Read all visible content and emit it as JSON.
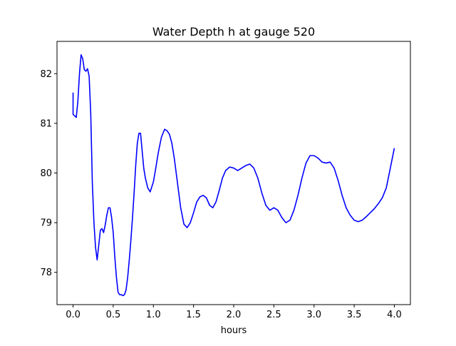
{
  "chart_data": {
    "type": "line",
    "title": "Water Depth h at gauge 520",
    "xlabel": "hours",
    "ylabel": "",
    "xlim": [
      -0.2,
      4.2
    ],
    "ylim": [
      77.35,
      82.65
    ],
    "xticks": [
      0.0,
      0.5,
      1.0,
      1.5,
      2.0,
      2.5,
      3.0,
      3.5,
      4.0
    ],
    "xtick_labels": [
      "0.0",
      "0.5",
      "1.0",
      "1.5",
      "2.0",
      "2.5",
      "3.0",
      "3.5",
      "4.0"
    ],
    "yticks": [
      78,
      79,
      80,
      81,
      82
    ],
    "ytick_labels": [
      "78",
      "79",
      "80",
      "81",
      "82"
    ],
    "grid": false,
    "legend": "none",
    "series": [
      {
        "color": "#0000ff",
        "x": [
          0.0,
          0.0,
          0.02,
          0.04,
          0.06,
          0.08,
          0.1,
          0.12,
          0.14,
          0.16,
          0.18,
          0.2,
          0.22,
          0.24,
          0.26,
          0.28,
          0.3,
          0.32,
          0.34,
          0.36,
          0.38,
          0.4,
          0.42,
          0.44,
          0.46,
          0.48,
          0.5,
          0.52,
          0.54,
          0.56,
          0.58,
          0.6,
          0.62,
          0.64,
          0.66,
          0.68,
          0.7,
          0.72,
          0.74,
          0.76,
          0.78,
          0.8,
          0.82,
          0.84,
          0.86,
          0.88,
          0.9,
          0.93,
          0.96,
          1.0,
          1.03,
          1.06,
          1.1,
          1.14,
          1.17,
          1.2,
          1.23,
          1.26,
          1.3,
          1.34,
          1.38,
          1.42,
          1.46,
          1.5,
          1.54,
          1.58,
          1.62,
          1.66,
          1.7,
          1.74,
          1.78,
          1.82,
          1.86,
          1.9,
          1.95,
          2.0,
          2.05,
          2.1,
          2.15,
          2.2,
          2.25,
          2.3,
          2.35,
          2.4,
          2.45,
          2.5,
          2.55,
          2.6,
          2.65,
          2.7,
          2.75,
          2.8,
          2.85,
          2.9,
          2.95,
          3.0,
          3.05,
          3.1,
          3.15,
          3.2,
          3.25,
          3.3,
          3.35,
          3.4,
          3.45,
          3.5,
          3.55,
          3.6,
          3.65,
          3.7,
          3.75,
          3.8,
          3.85,
          3.9,
          3.95,
          4.0
        ],
        "y": [
          81.62,
          81.18,
          81.15,
          81.12,
          81.45,
          82.0,
          82.38,
          82.3,
          82.08,
          82.05,
          82.1,
          81.95,
          81.2,
          79.8,
          79.0,
          78.5,
          78.25,
          78.55,
          78.85,
          78.88,
          78.8,
          78.95,
          79.15,
          79.3,
          79.3,
          79.1,
          78.8,
          78.3,
          77.9,
          77.6,
          77.55,
          77.55,
          77.53,
          77.55,
          77.65,
          77.9,
          78.25,
          78.65,
          79.1,
          79.6,
          80.15,
          80.6,
          80.8,
          80.8,
          80.45,
          80.1,
          79.9,
          79.7,
          79.62,
          79.82,
          80.1,
          80.4,
          80.72,
          80.88,
          80.85,
          80.78,
          80.6,
          80.3,
          79.8,
          79.3,
          78.97,
          78.9,
          79.0,
          79.2,
          79.42,
          79.52,
          79.55,
          79.5,
          79.35,
          79.3,
          79.42,
          79.65,
          79.9,
          80.05,
          80.12,
          80.1,
          80.05,
          80.1,
          80.15,
          80.18,
          80.1,
          79.9,
          79.6,
          79.35,
          79.25,
          79.3,
          79.25,
          79.1,
          79.0,
          79.05,
          79.25,
          79.55,
          79.9,
          80.2,
          80.35,
          80.35,
          80.3,
          80.22,
          80.2,
          80.22,
          80.1,
          79.85,
          79.55,
          79.3,
          79.15,
          79.05,
          79.02,
          79.05,
          79.12,
          79.2,
          79.28,
          79.38,
          79.5,
          79.7,
          80.1,
          80.5
        ]
      }
    ]
  }
}
